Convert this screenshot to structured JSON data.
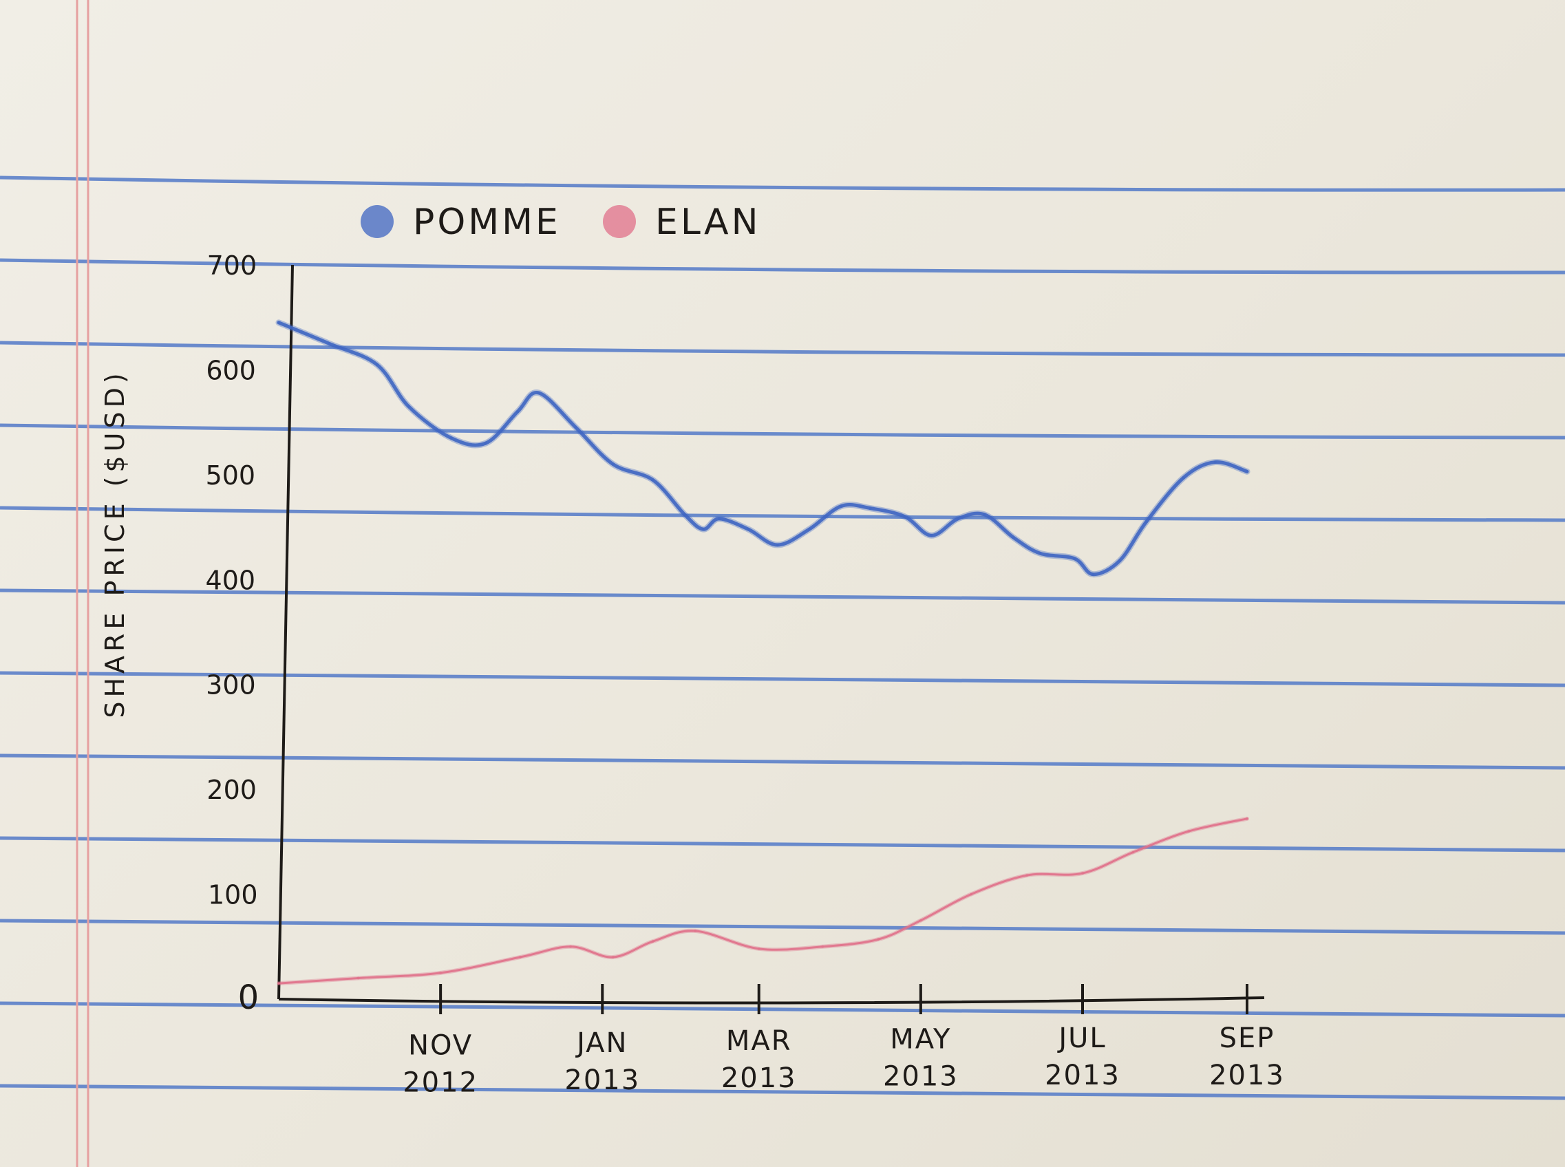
{
  "chart_data": {
    "type": "line",
    "title": "",
    "xlabel": "",
    "ylabel": "SHARE PRICE ($USD)",
    "ylim": [
      0,
      700
    ],
    "yticks": [
      0,
      100,
      200,
      300,
      400,
      500,
      600,
      700
    ],
    "xlim": [
      "2012-09-01",
      "2013-09-01"
    ],
    "xticks": [
      {
        "date": "2012-11-01",
        "label": [
          "NOV",
          "2012"
        ]
      },
      {
        "date": "2013-01-01",
        "label": [
          "JAN",
          "2013"
        ]
      },
      {
        "date": "2013-03-01",
        "label": [
          "MAR",
          "2013"
        ]
      },
      {
        "date": "2013-05-01",
        "label": [
          "MAY",
          "2013"
        ]
      },
      {
        "date": "2013-07-01",
        "label": [
          "JUL",
          "2013"
        ]
      },
      {
        "date": "2013-09-01",
        "label": [
          "SEP",
          "2013"
        ]
      }
    ],
    "legend_position": "top-left",
    "grid": false,
    "series": [
      {
        "name": "POMME",
        "color": "#3f66c2",
        "points": [
          [
            "2012-09-01",
            645
          ],
          [
            "2012-09-20",
            625
          ],
          [
            "2012-10-08",
            605
          ],
          [
            "2012-10-20",
            565
          ],
          [
            "2012-11-05",
            535
          ],
          [
            "2012-11-18",
            530
          ],
          [
            "2012-11-30",
            560
          ],
          [
            "2012-12-08",
            578
          ],
          [
            "2012-12-22",
            545
          ],
          [
            "2013-01-05",
            510
          ],
          [
            "2013-01-20",
            495
          ],
          [
            "2013-02-01",
            462
          ],
          [
            "2013-02-08",
            448
          ],
          [
            "2013-02-14",
            458
          ],
          [
            "2013-02-25",
            448
          ],
          [
            "2013-03-08",
            433
          ],
          [
            "2013-03-20",
            448
          ],
          [
            "2013-04-01",
            470
          ],
          [
            "2013-04-12",
            468
          ],
          [
            "2013-04-25",
            460
          ],
          [
            "2013-05-05",
            442
          ],
          [
            "2013-05-15",
            458
          ],
          [
            "2013-05-25",
            462
          ],
          [
            "2013-06-05",
            440
          ],
          [
            "2013-06-15",
            425
          ],
          [
            "2013-06-28",
            420
          ],
          [
            "2013-07-05",
            405
          ],
          [
            "2013-07-15",
            418
          ],
          [
            "2013-07-25",
            455
          ],
          [
            "2013-08-08",
            497
          ],
          [
            "2013-08-20",
            512
          ],
          [
            "2013-09-01",
            503
          ]
        ]
      },
      {
        "name": "ELAN",
        "color": "#e0708a",
        "points": [
          [
            "2012-09-01",
            15
          ],
          [
            "2012-10-01",
            20
          ],
          [
            "2012-11-01",
            25
          ],
          [
            "2012-12-01",
            40
          ],
          [
            "2012-12-20",
            50
          ],
          [
            "2013-01-05",
            40
          ],
          [
            "2013-01-20",
            55
          ],
          [
            "2013-02-05",
            65
          ],
          [
            "2013-03-01",
            48
          ],
          [
            "2013-03-25",
            50
          ],
          [
            "2013-04-15",
            57
          ],
          [
            "2013-05-01",
            75
          ],
          [
            "2013-05-20",
            100
          ],
          [
            "2013-06-10",
            118
          ],
          [
            "2013-07-01",
            120
          ],
          [
            "2013-07-20",
            140
          ],
          [
            "2013-08-10",
            160
          ],
          [
            "2013-09-01",
            172
          ]
        ]
      }
    ]
  }
}
